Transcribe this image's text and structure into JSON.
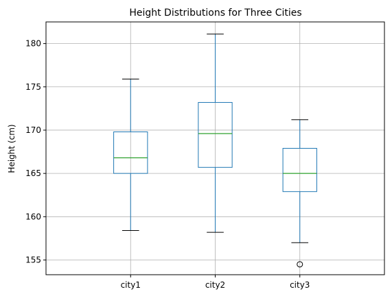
{
  "chart_data": {
    "type": "box",
    "title": "Height Distributions for Three Cities",
    "xlabel": "",
    "ylabel": "Height (cm)",
    "ylim": [
      153.3,
      182.5
    ],
    "yticks": [
      155,
      160,
      165,
      170,
      175,
      180
    ],
    "grid": true,
    "categories": [
      "city1",
      "city2",
      "city3"
    ],
    "boxes": [
      {
        "whisker_low": 158.4,
        "q1": 165.0,
        "median": 166.8,
        "q3": 169.8,
        "whisker_high": 175.9,
        "outliers": []
      },
      {
        "whisker_low": 158.2,
        "q1": 165.7,
        "median": 169.6,
        "q3": 173.2,
        "whisker_high": 181.1,
        "outliers": []
      },
      {
        "whisker_low": 157.0,
        "q1": 162.9,
        "median": 165.0,
        "q3": 167.9,
        "whisker_high": 171.2,
        "outliers": [
          154.5
        ]
      }
    ],
    "colors": {
      "box": "#1f77b4",
      "median": "#2ca02c",
      "whisker_cap": "#000000",
      "grid": "#b0b0b0"
    }
  }
}
